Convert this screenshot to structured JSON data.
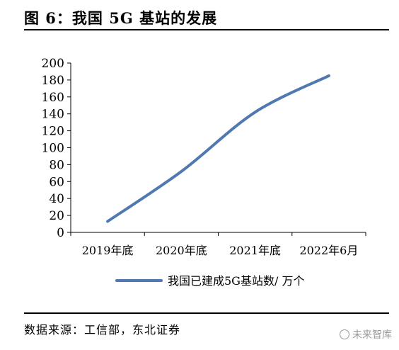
{
  "figure": {
    "title": "图 6：我国 5G 基站的发展",
    "source": "数据来源：工信部，东北证券",
    "watermark": "未来智库"
  },
  "colors": {
    "series_line": "#4f79b0",
    "axis": "#000000",
    "text": "#000000",
    "watermark": "#9a9a9a"
  },
  "chart_data": {
    "type": "line",
    "categories": [
      "2019年底",
      "2020年底",
      "2021年底",
      "2022年6月"
    ],
    "series": [
      {
        "name": "我国已建成5G基站数/ 万个",
        "values": [
          13,
          72,
          142,
          185
        ]
      }
    ],
    "title": "",
    "xlabel": "",
    "ylabel": "",
    "ylim": [
      0,
      200
    ],
    "yticks": [
      0,
      20,
      40,
      60,
      80,
      100,
      120,
      140,
      160,
      180,
      200
    ],
    "smooth": true,
    "grid": false,
    "legend_position": "bottom"
  }
}
